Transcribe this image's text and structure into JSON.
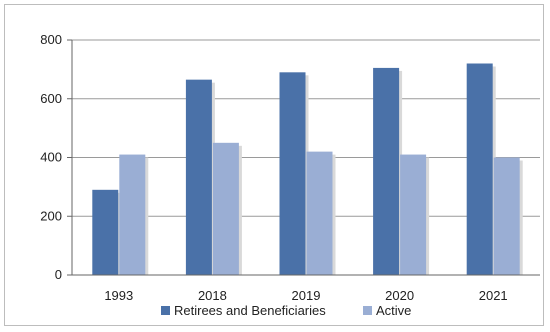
{
  "chart_data": {
    "type": "bar",
    "categories": [
      "1993",
      "2018",
      "2019",
      "2020",
      "2021"
    ],
    "series": [
      {
        "name": "Retirees and Beneficiaries",
        "values": [
          290,
          665,
          690,
          705,
          720
        ],
        "color": "#4a71a8"
      },
      {
        "name": "Active",
        "values": [
          410,
          450,
          420,
          410,
          400
        ],
        "color": "#9aaed4"
      }
    ],
    "title": "",
    "xlabel": "",
    "ylabel": "",
    "ylim": [
      0,
      800
    ],
    "yticks": [
      "0",
      "200",
      "400",
      "600",
      "800"
    ],
    "grid": true,
    "legend_position": "bottom"
  }
}
